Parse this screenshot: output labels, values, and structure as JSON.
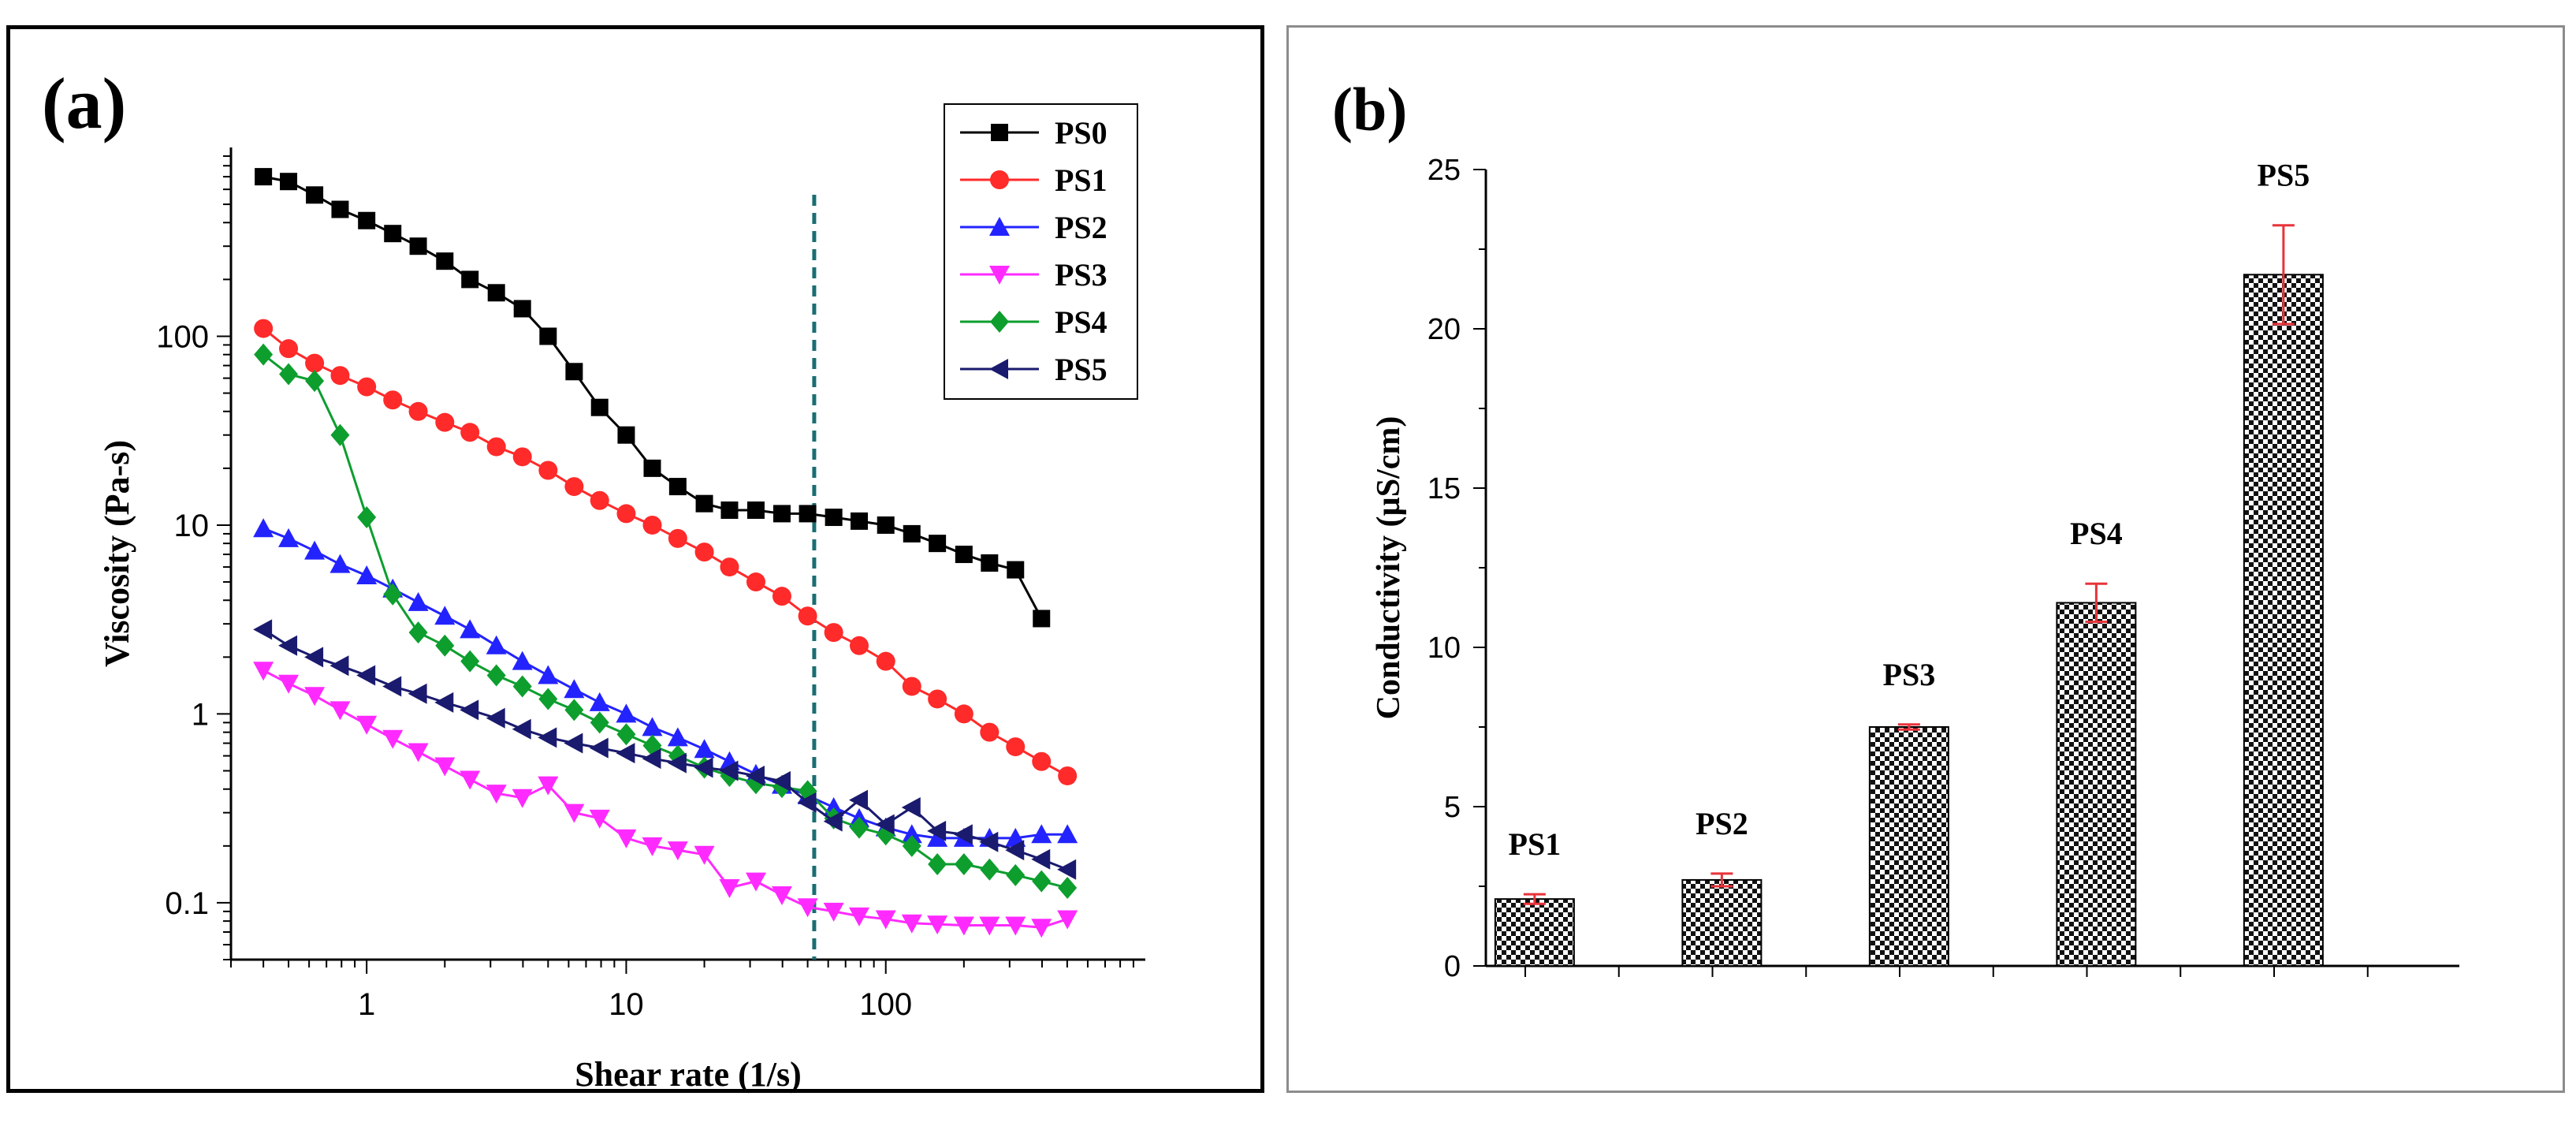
{
  "chart_data": [
    {
      "panel_label": "(a)",
      "type": "line",
      "xscale": "log",
      "yscale": "log",
      "xlim": [
        0.3,
        1000
      ],
      "ylim": [
        0.05,
        1000
      ],
      "xlabel": "Shear rate (1/s)",
      "ylabel": "Viscosity (Pa-s)",
      "x_ticks": [
        1,
        10,
        100
      ],
      "x_tick_labels": [
        "1",
        "10",
        "100"
      ],
      "y_ticks": [
        0.1,
        1,
        10,
        100
      ],
      "y_tick_labels": [
        "0.1",
        "1",
        "10",
        "100"
      ],
      "vline_x": 53,
      "legend_position": "top-right",
      "x": [
        0.4,
        0.5,
        0.63,
        0.79,
        1.0,
        1.26,
        1.58,
        2.0,
        2.5,
        3.16,
        3.98,
        5.0,
        6.3,
        7.9,
        10,
        12.6,
        15.8,
        20,
        25,
        31.6,
        39.8,
        50,
        63,
        79,
        100,
        126,
        158,
        200,
        251,
        316,
        398,
        501
      ],
      "series": [
        {
          "name": "PS0",
          "color": "#000000",
          "marker": "square",
          "values": [
            700,
            660,
            560,
            470,
            410,
            350,
            300,
            250,
            200,
            170,
            140,
            100,
            65,
            42,
            30,
            20,
            16,
            13,
            12,
            12,
            11.5,
            11.5,
            11,
            10.5,
            10,
            9,
            8,
            7,
            6.3,
            5.8,
            3.2,
            null
          ]
        },
        {
          "name": "PS1",
          "color": "#ff2a2a",
          "marker": "circle",
          "values": [
            110,
            86,
            72,
            62,
            54,
            46,
            40,
            35,
            31,
            26,
            23,
            19.5,
            16,
            13.5,
            11.5,
            10,
            8.5,
            7.2,
            6,
            5,
            4.2,
            3.3,
            2.7,
            2.3,
            1.9,
            1.4,
            1.2,
            1,
            0.8,
            0.67,
            0.56,
            0.47
          ]
        },
        {
          "name": "PS2",
          "color": "#2323ff",
          "marker": "triangle-up",
          "values": [
            9.6,
            8.5,
            7.3,
            6.2,
            5.4,
            4.6,
            3.9,
            3.3,
            2.8,
            2.3,
            1.9,
            1.6,
            1.35,
            1.15,
            1.0,
            0.85,
            0.75,
            0.65,
            0.56,
            0.48,
            0.42,
            0.37,
            0.32,
            0.28,
            0.25,
            0.23,
            0.22,
            0.22,
            0.22,
            0.22,
            0.23,
            0.23
          ]
        },
        {
          "name": "PS3",
          "color": "#ff2aff",
          "marker": "triangle-down",
          "values": [
            1.7,
            1.45,
            1.25,
            1.05,
            0.88,
            0.74,
            0.63,
            0.53,
            0.45,
            0.38,
            0.36,
            0.42,
            0.3,
            0.28,
            0.22,
            0.2,
            0.19,
            0.18,
            0.12,
            0.13,
            0.11,
            0.095,
            0.09,
            0.085,
            0.082,
            0.078,
            0.077,
            0.076,
            0.076,
            0.076,
            0.074,
            0.082
          ]
        },
        {
          "name": "PS4",
          "color": "#0d9e2e",
          "marker": "diamond",
          "values": [
            80,
            63,
            58,
            30,
            11,
            4.3,
            2.7,
            2.3,
            1.9,
            1.6,
            1.4,
            1.2,
            1.05,
            0.9,
            0.78,
            0.68,
            0.6,
            0.52,
            0.47,
            0.43,
            0.41,
            0.39,
            0.28,
            0.25,
            0.23,
            0.2,
            0.16,
            0.16,
            0.15,
            0.14,
            0.13,
            0.12
          ]
        },
        {
          "name": "PS5",
          "color": "#1a1a6e",
          "marker": "triangle-left",
          "values": [
            2.8,
            2.3,
            2.0,
            1.8,
            1.6,
            1.4,
            1.28,
            1.15,
            1.05,
            0.95,
            0.83,
            0.75,
            0.7,
            0.66,
            0.62,
            0.58,
            0.55,
            0.52,
            0.5,
            0.47,
            0.44,
            0.34,
            0.27,
            0.35,
            0.26,
            0.32,
            0.24,
            0.23,
            0.21,
            0.19,
            0.17,
            0.15
          ]
        }
      ]
    },
    {
      "panel_label": "(b)",
      "type": "bar",
      "categories": [
        "PS1",
        "PS2",
        "PS3",
        "PS4",
        "PS5"
      ],
      "values": [
        2.1,
        2.7,
        7.5,
        11.4,
        21.7
      ],
      "errors": [
        0.15,
        0.2,
        0.08,
        0.6,
        1.55
      ],
      "ylabel": "Conductivity (µS/cm)",
      "xlabel": "",
      "ylim": [
        0,
        25
      ],
      "y_ticks": [
        0,
        5,
        10,
        15,
        20,
        25
      ],
      "y_tick_labels": [
        "0",
        "5",
        "10",
        "15",
        "20",
        "25"
      ],
      "bar_labels": [
        "PS1",
        "PS2",
        "PS3",
        "PS4",
        "PS5"
      ],
      "error_color": "#e8333a",
      "bar_pattern": "checkered"
    }
  ]
}
